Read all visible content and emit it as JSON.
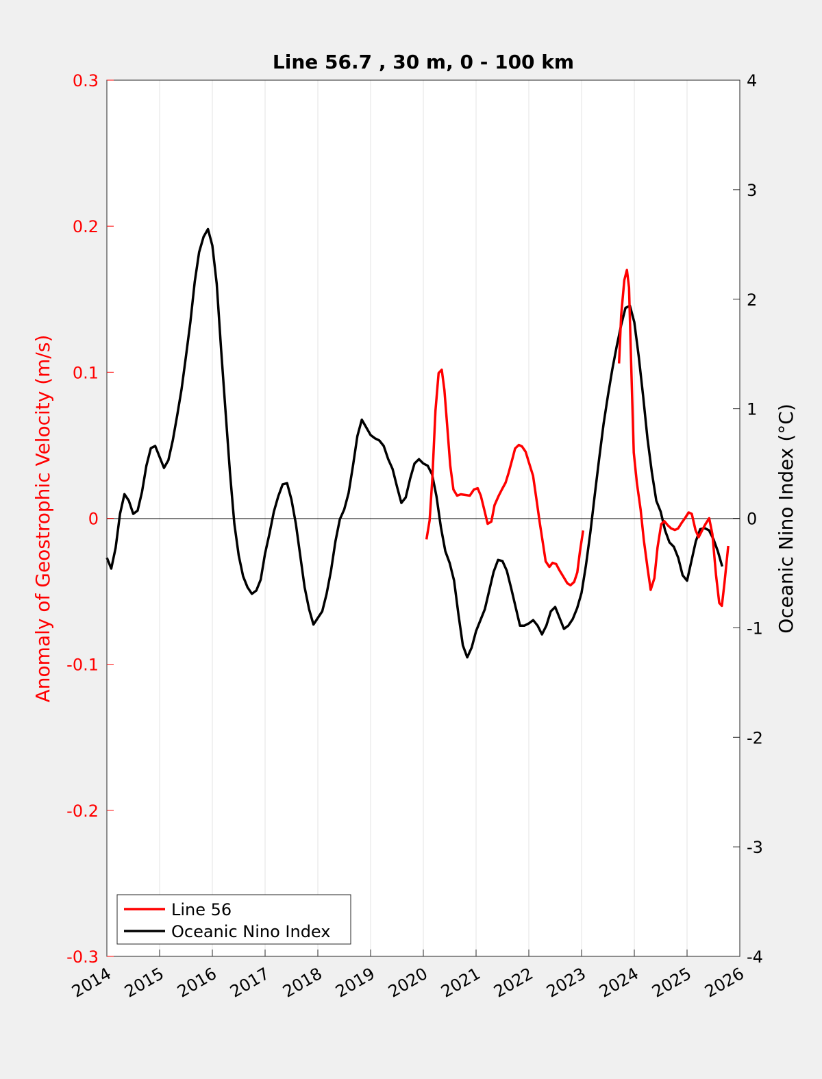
{
  "chart_data": {
    "type": "line",
    "title": "Line 56.7 , 30 m, 0 - 100 km",
    "xlabel": "",
    "ylabel_left": "Anomaly of Geostrophic Velocity (m/s)",
    "ylabel_right": "Oceanic Nino Index (°C)",
    "xlim": [
      2014,
      2026
    ],
    "ylim_left": [
      -0.3,
      0.3
    ],
    "ylim_right": [
      -4,
      4
    ],
    "x_ticks": [
      "2014",
      "2015",
      "2016",
      "2017",
      "2018",
      "2019",
      "2020",
      "2021",
      "2022",
      "2023",
      "2024",
      "2025",
      "2026"
    ],
    "y_left_ticks": [
      "-0.3",
      "-0.2",
      "-0.1",
      "0",
      "0.1",
      "0.2",
      "0.3"
    ],
    "y_right_ticks": [
      "-4",
      "-3",
      "-2",
      "-1",
      "0",
      "1",
      "2",
      "3",
      "4"
    ],
    "grid": "vertical",
    "legend_position": "bottom-left",
    "colors": {
      "line56": "#ff0000",
      "oni": "#000000",
      "left_axis": "#ff0000",
      "right_axis": "#000000"
    },
    "series": [
      {
        "name": "Line 56",
        "axis": "left",
        "segments": [
          {
            "x": [
              2020.06,
              2020.12,
              2020.17,
              2020.23,
              2020.29,
              2020.35,
              2020.4,
              2020.45,
              2020.51,
              2020.57,
              2020.64,
              2020.71,
              2020.81,
              2020.88,
              2020.96,
              2021.03,
              2021.09,
              2021.16,
              2021.22,
              2021.29,
              2021.35,
              2021.43,
              2021.49,
              2021.56,
              2021.62,
              2021.69,
              2021.74,
              2021.81,
              2021.87,
              2021.94,
              2022.0,
              2022.08,
              2022.14,
              2022.21,
              2022.27,
              2022.32,
              2022.39,
              2022.45,
              2022.52,
              2022.58,
              2022.66,
              2022.73,
              2022.79,
              2022.86,
              2022.92,
              2022.97,
              2023.03
            ],
            "y": [
              -0.0145,
              -0.0014,
              0.0267,
              0.0736,
              0.0994,
              0.1017,
              0.0877,
              0.0642,
              0.0361,
              0.0197,
              0.0155,
              0.0164,
              0.0159,
              0.0155,
              0.0197,
              0.0206,
              0.0155,
              0.0052,
              -0.0038,
              -0.0023,
              0.0089,
              0.0155,
              0.0197,
              0.0244,
              0.0314,
              0.0408,
              0.0478,
              0.0502,
              0.0492,
              0.0455,
              0.0384,
              0.0291,
              0.0141,
              -0.0038,
              -0.0178,
              -0.0295,
              -0.0333,
              -0.0305,
              -0.0314,
              -0.0356,
              -0.0403,
              -0.0445,
              -0.0459,
              -0.0436,
              -0.037,
              -0.0225,
              -0.0084
            ]
          },
          {
            "x": [
              2023.71,
              2023.75,
              2023.81,
              2023.86,
              2023.9,
              2023.94,
              2023.99,
              2024.05,
              2024.12,
              2024.18,
              2024.25,
              2024.31,
              2024.38,
              2024.44,
              2024.51,
              2024.57,
              2024.64,
              2024.7,
              2024.77,
              2024.83,
              2024.9,
              2024.96,
              2025.03,
              2025.09,
              2025.16,
              2025.22,
              2025.29,
              2025.35,
              2025.42,
              2025.48,
              2025.55,
              2025.61,
              2025.66,
              2025.71,
              2025.78
            ],
            "y": [
              0.106,
              0.139,
              0.163,
              0.17,
              0.158,
              0.106,
              0.045,
              0.024,
              0.006,
              -0.015,
              -0.034,
              -0.049,
              -0.041,
              -0.02,
              -0.004,
              -0.002,
              -0.005,
              -0.007,
              -0.008,
              -0.007,
              -0.003,
              0.0,
              0.004,
              0.003,
              -0.008,
              -0.013,
              -0.008,
              -0.004,
              0.0,
              -0.011,
              -0.039,
              -0.058,
              -0.06,
              -0.044,
              -0.019
            ]
          }
        ]
      },
      {
        "name": "Oceanic Nino Index",
        "axis": "right",
        "x_start": 2014.0,
        "x_step": 0.08333,
        "y": [
          -0.36,
          -0.46,
          -0.27,
          0.04,
          0.22,
          0.16,
          0.04,
          0.07,
          0.24,
          0.48,
          0.64,
          0.66,
          0.56,
          0.46,
          0.53,
          0.71,
          0.94,
          1.18,
          1.48,
          1.79,
          2.16,
          2.43,
          2.57,
          2.64,
          2.49,
          2.14,
          1.54,
          0.98,
          0.42,
          -0.05,
          -0.34,
          -0.53,
          -0.63,
          -0.69,
          -0.66,
          -0.56,
          -0.32,
          -0.14,
          0.06,
          0.2,
          0.31,
          0.32,
          0.17,
          -0.05,
          -0.34,
          -0.63,
          -0.83,
          -0.97,
          -0.91,
          -0.85,
          -0.69,
          -0.48,
          -0.21,
          -0.01,
          0.08,
          0.23,
          0.48,
          0.75,
          0.9,
          0.83,
          0.76,
          0.73,
          0.71,
          0.66,
          0.54,
          0.45,
          0.29,
          0.14,
          0.19,
          0.36,
          0.5,
          0.54,
          0.5,
          0.48,
          0.4,
          0.2,
          -0.08,
          -0.3,
          -0.41,
          -0.57,
          -0.88,
          -1.16,
          -1.27,
          -1.18,
          -1.03,
          -0.93,
          -0.83,
          -0.66,
          -0.49,
          -0.38,
          -0.39,
          -0.48,
          -0.64,
          -0.81,
          -0.98,
          -0.98,
          -0.96,
          -0.93,
          -0.98,
          -1.06,
          -0.98,
          -0.85,
          -0.81,
          -0.91,
          -1.01,
          -0.98,
          -0.92,
          -0.82,
          -0.68,
          -0.43,
          -0.13,
          0.21,
          0.54,
          0.86,
          1.12,
          1.36,
          1.57,
          1.76,
          1.92,
          1.94,
          1.79,
          1.48,
          1.12,
          0.73,
          0.42,
          0.16,
          0.06,
          -0.11,
          -0.22,
          -0.26,
          -0.36,
          -0.52,
          -0.57,
          -0.39,
          -0.21,
          -0.1,
          -0.09,
          -0.11,
          -0.19,
          -0.3,
          -0.44
        ]
      }
    ]
  }
}
